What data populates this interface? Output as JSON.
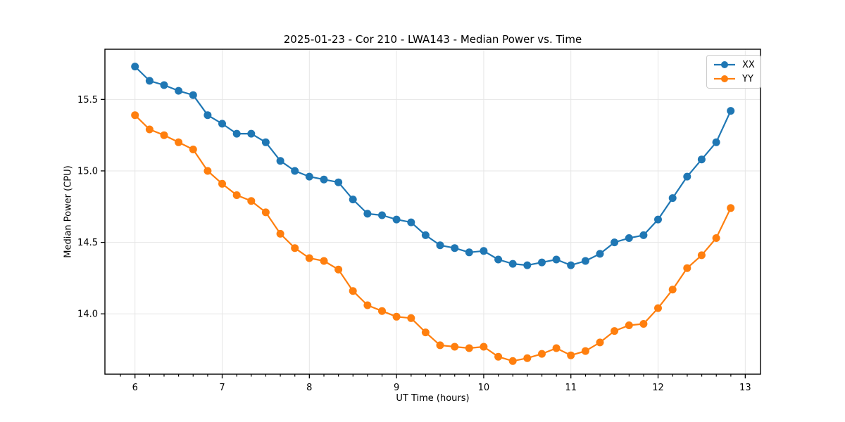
{
  "chart_data": {
    "type": "line",
    "title": "2025-01-23 - Cor 210 - LWA143 - Median Power vs. Time",
    "xlabel": "UT Time (hours)",
    "ylabel": "Median Power (CPU)",
    "xlim": [
      5.655,
      13.175
    ],
    "ylim": [
      13.578,
      15.851
    ],
    "grid": true,
    "legend_position": "upper right",
    "xticks": {
      "major": [
        6,
        7,
        8,
        9,
        10,
        11,
        12,
        13
      ],
      "labels": [
        "6",
        "7",
        "8",
        "9",
        "10",
        "11",
        "12",
        "13"
      ],
      "minor_step_hours": 0.1667
    },
    "yticks": {
      "major": [
        14.0,
        14.5,
        15.0,
        15.5
      ],
      "labels": [
        "14.0",
        "14.5",
        "15.0",
        "15.5"
      ]
    },
    "colors": {
      "grid": "#e6e6e6",
      "spine": "#000000",
      "text": "#000000"
    },
    "marker": "circle",
    "x": [
      6.0,
      6.1667,
      6.3333,
      6.5,
      6.6667,
      6.8333,
      7.0,
      7.1667,
      7.3333,
      7.5,
      7.6667,
      7.8333,
      8.0,
      8.1667,
      8.3333,
      8.5,
      8.6667,
      8.8333,
      9.0,
      9.1667,
      9.3333,
      9.5,
      9.6667,
      9.8333,
      10.0,
      10.1667,
      10.3333,
      10.5,
      10.6667,
      10.8333,
      11.0,
      11.1667,
      11.3333,
      11.5,
      11.6667,
      11.8333,
      12.0,
      12.1667,
      12.3333,
      12.5,
      12.6667,
      12.8333
    ],
    "series": [
      {
        "name": "XX",
        "color": "#1f77b4",
        "values": [
          15.73,
          15.63,
          15.6,
          15.56,
          15.53,
          15.39,
          15.33,
          15.26,
          15.26,
          15.2,
          15.07,
          15.0,
          14.96,
          14.94,
          14.92,
          14.8,
          14.7,
          14.69,
          14.66,
          14.64,
          14.55,
          14.48,
          14.46,
          14.43,
          14.44,
          14.38,
          14.35,
          14.34,
          14.36,
          14.38,
          14.34,
          14.37,
          14.42,
          14.5,
          14.53,
          14.55,
          14.66,
          14.81,
          14.96,
          15.08,
          15.2,
          15.42
        ]
      },
      {
        "name": "YY",
        "color": "#ff7f0e",
        "values": [
          15.39,
          15.29,
          15.25,
          15.2,
          15.15,
          15.0,
          14.91,
          14.83,
          14.79,
          14.71,
          14.56,
          14.46,
          14.39,
          14.37,
          14.31,
          14.16,
          14.06,
          14.02,
          13.98,
          13.97,
          13.87,
          13.78,
          13.77,
          13.76,
          13.77,
          13.7,
          13.67,
          13.69,
          13.72,
          13.76,
          13.71,
          13.74,
          13.8,
          13.88,
          13.92,
          13.93,
          14.04,
          14.17,
          14.32,
          14.41,
          14.53,
          14.74
        ]
      }
    ]
  }
}
